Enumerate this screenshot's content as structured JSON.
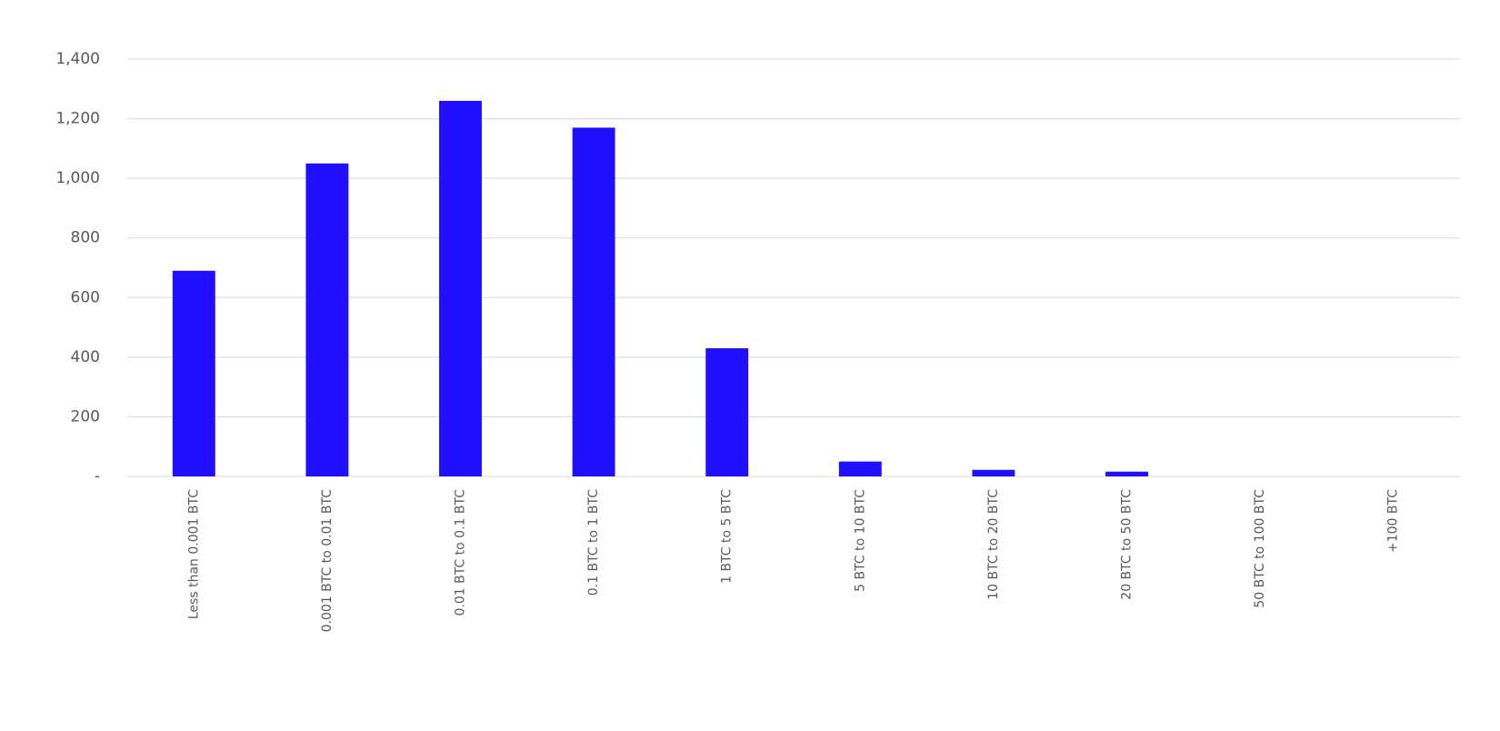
{
  "chart_data": {
    "type": "bar",
    "categories": [
      "Less than 0.001 BTC",
      "0.001 BTC to 0.01 BTC",
      "0.01 BTC to 0.1 BTC",
      "0.1 BTC to 1 BTC",
      "1 BTC to 5 BTC",
      "5 BTC to 10 BTC",
      "10 BTC to 20 BTC",
      "20 BTC to 50 BTC",
      "50 BTC to 100 BTC",
      "+100 BTC"
    ],
    "values": [
      690,
      1050,
      1260,
      1170,
      430,
      50,
      22,
      16,
      0,
      0
    ],
    "color": "#2010ff",
    "ylim": [
      0,
      1400
    ],
    "yticks": [
      {
        "value": 0,
        "label": "-"
      },
      200,
      400,
      600,
      800,
      {
        "value": 1000,
        "label": "1,000"
      },
      {
        "value": 1200,
        "label": "1,200"
      },
      {
        "value": 1400,
        "label": "1,400"
      }
    ],
    "grid": true
  }
}
